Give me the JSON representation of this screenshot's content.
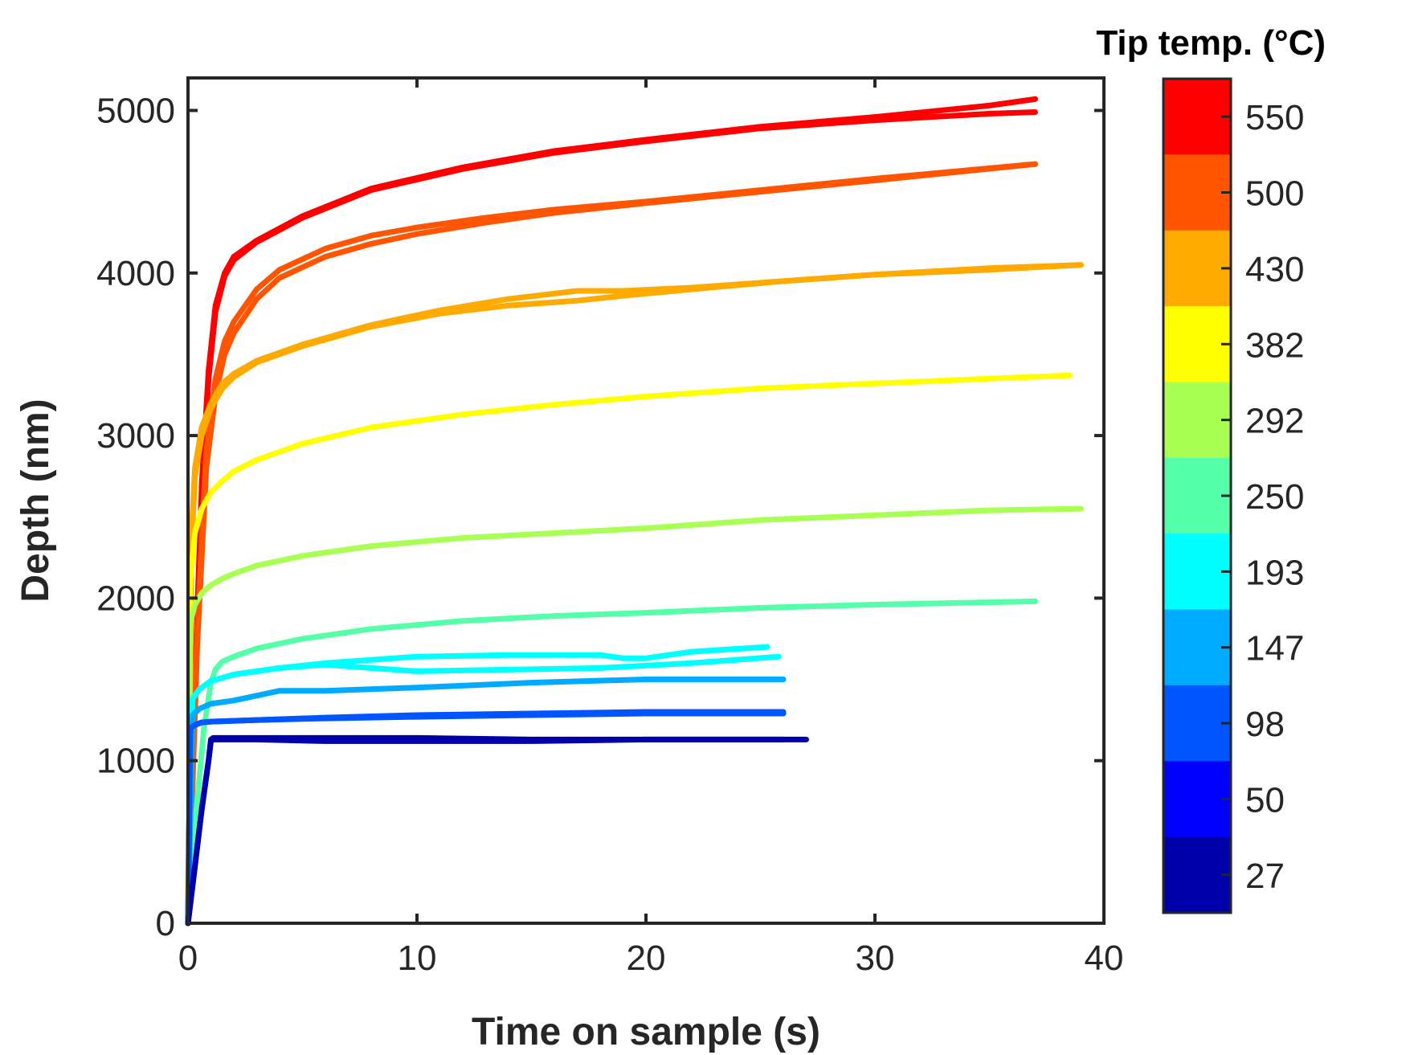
{
  "chart_data": {
    "type": "line",
    "title": "",
    "xlabel": "Time on sample (s)",
    "ylabel": "Depth (nm)",
    "xlim": [
      0,
      40
    ],
    "ylim": [
      0,
      5200
    ],
    "xticks": [
      "0",
      "10",
      "20",
      "30",
      "40"
    ],
    "yticks": [
      "0",
      "1000",
      "2000",
      "3000",
      "4000",
      "5000"
    ],
    "grid": false,
    "colorbar": {
      "title": "Tip temp. (°C)",
      "labels": [
        "550",
        "500",
        "430",
        "382",
        "292",
        "250",
        "193",
        "147",
        "98",
        "50",
        "27"
      ],
      "colors": [
        "#ff0000",
        "#ff5500",
        "#ffaa00",
        "#ffff00",
        "#aaff55",
        "#55ffaa",
        "#00ffff",
        "#00aaff",
        "#0055ff",
        "#0000ff",
        "#0000aa"
      ]
    },
    "series": [
      {
        "temp": "550",
        "color": "#ff0000",
        "x": [
          0,
          0.3,
          0.6,
          0.9,
          1.2,
          1.6,
          2,
          3,
          5,
          8,
          12,
          16,
          20,
          25,
          30,
          35,
          37
        ],
        "y": [
          0,
          1500,
          2700,
          3400,
          3800,
          4000,
          4100,
          4200,
          4350,
          4520,
          4650,
          4750,
          4820,
          4900,
          4960,
          5030,
          5070
        ]
      },
      {
        "temp": "550",
        "color": "#ff0000",
        "x": [
          0,
          0.3,
          0.6,
          0.9,
          1.2,
          1.6,
          2,
          3,
          5,
          8,
          12,
          16,
          20,
          25,
          30,
          35,
          37
        ],
        "y": [
          0,
          1400,
          2600,
          3350,
          3760,
          3980,
          4080,
          4190,
          4340,
          4510,
          4640,
          4740,
          4810,
          4890,
          4940,
          4980,
          4990
        ]
      },
      {
        "temp": "500",
        "color": "#ff5500",
        "x": [
          0,
          0.4,
          0.8,
          1.2,
          1.6,
          2,
          3,
          4,
          6,
          8,
          10,
          13,
          16,
          20,
          25,
          30,
          37
        ],
        "y": [
          0,
          1800,
          2900,
          3350,
          3580,
          3700,
          3900,
          4020,
          4150,
          4230,
          4280,
          4340,
          4390,
          4440,
          4510,
          4580,
          4670
        ]
      },
      {
        "temp": "500",
        "color": "#ff5500",
        "x": [
          0,
          0.4,
          0.8,
          1.2,
          1.6,
          2,
          3,
          4,
          6,
          8,
          10,
          13,
          16,
          20,
          25,
          30,
          37
        ],
        "y": [
          0,
          1700,
          2800,
          3250,
          3500,
          3630,
          3840,
          3970,
          4100,
          4180,
          4240,
          4310,
          4370,
          4430,
          4500,
          4570,
          4670
        ]
      },
      {
        "temp": "430",
        "color": "#ffaa00",
        "x": [
          0,
          0.15,
          0.3,
          0.6,
          1,
          1.5,
          2,
          3,
          5,
          8,
          11,
          14,
          17,
          19,
          22,
          26,
          30,
          35,
          39
        ],
        "y": [
          0,
          2400,
          2800,
          3050,
          3200,
          3320,
          3380,
          3460,
          3560,
          3680,
          3770,
          3840,
          3890,
          3890,
          3910,
          3950,
          3990,
          4020,
          4050
        ]
      },
      {
        "temp": "430",
        "color": "#ffaa00",
        "x": [
          0,
          0.15,
          0.3,
          0.6,
          1,
          1.5,
          2,
          3,
          5,
          8,
          11,
          14,
          17,
          19,
          22,
          26,
          30,
          35,
          39
        ],
        "y": [
          0,
          2300,
          2750,
          3000,
          3170,
          3290,
          3360,
          3450,
          3550,
          3670,
          3750,
          3800,
          3830,
          3860,
          3900,
          3950,
          3990,
          4030,
          4050
        ]
      },
      {
        "temp": "382",
        "color": "#ffff00",
        "x": [
          0,
          0.1,
          0.3,
          0.6,
          1,
          1.5,
          2,
          3,
          5,
          8,
          12,
          16,
          20,
          25,
          30,
          35,
          38.5
        ],
        "y": [
          0,
          2100,
          2400,
          2550,
          2650,
          2720,
          2780,
          2850,
          2950,
          3050,
          3130,
          3190,
          3240,
          3290,
          3320,
          3350,
          3370
        ]
      },
      {
        "temp": "292",
        "color": "#aaff55",
        "x": [
          0,
          0.1,
          0.3,
          0.6,
          1,
          1.5,
          2,
          3,
          5,
          8,
          12,
          16,
          20,
          25,
          30,
          35,
          39
        ],
        "y": [
          0,
          1850,
          1960,
          2030,
          2080,
          2120,
          2150,
          2200,
          2260,
          2320,
          2370,
          2400,
          2430,
          2480,
          2510,
          2540,
          2550
        ]
      },
      {
        "temp": "250",
        "color": "#55ffaa",
        "x": [
          0,
          0.3,
          0.7,
          1,
          1.2,
          1.5,
          2,
          3,
          5,
          8,
          12,
          16,
          20,
          25,
          30,
          37
        ],
        "y": [
          0,
          600,
          1200,
          1480,
          1560,
          1610,
          1640,
          1690,
          1750,
          1810,
          1860,
          1890,
          1910,
          1940,
          1960,
          1980
        ]
      },
      {
        "temp": "193",
        "color": "#00ffff",
        "x": [
          0,
          0.2,
          0.5,
          1,
          2,
          4,
          6,
          8,
          10,
          14,
          18,
          19,
          20,
          22,
          25.3
        ],
        "y": [
          0,
          1380,
          1440,
          1490,
          1530,
          1570,
          1600,
          1620,
          1640,
          1650,
          1650,
          1630,
          1630,
          1670,
          1700
        ]
      },
      {
        "temp": "193",
        "color": "#00ffff",
        "x": [
          0,
          0.2,
          0.5,
          1,
          2,
          4,
          6,
          8,
          10,
          14,
          18,
          22,
          25.8
        ],
        "y": [
          0,
          1380,
          1440,
          1490,
          1530,
          1570,
          1590,
          1570,
          1550,
          1560,
          1570,
          1600,
          1640
        ]
      },
      {
        "temp": "147",
        "color": "#00aaff",
        "x": [
          0,
          0.2,
          0.5,
          1,
          2,
          3,
          4,
          6,
          10,
          15,
          20,
          26
        ],
        "y": [
          0,
          1280,
          1320,
          1350,
          1370,
          1400,
          1430,
          1430,
          1450,
          1480,
          1500,
          1500
        ]
      },
      {
        "temp": "98",
        "color": "#0055ff",
        "x": [
          0,
          0.1,
          0.3,
          0.6,
          1,
          3,
          6,
          10,
          15,
          20,
          26
        ],
        "y": [
          0,
          1200,
          1220,
          1235,
          1240,
          1250,
          1265,
          1280,
          1290,
          1300,
          1300
        ]
      },
      {
        "temp": "98",
        "color": "#0055ff",
        "x": [
          0,
          0.1,
          0.3,
          0.6,
          1,
          3,
          6,
          10,
          15,
          20,
          26
        ],
        "y": [
          0,
          1200,
          1220,
          1235,
          1240,
          1250,
          1260,
          1270,
          1280,
          1290,
          1290
        ]
      },
      {
        "temp": "27",
        "color": "#0000aa",
        "x": [
          0,
          0.3,
          0.6,
          0.9,
          1,
          1.1,
          3,
          6,
          10,
          15,
          20,
          27
        ],
        "y": [
          0,
          350,
          700,
          1000,
          1130,
          1140,
          1140,
          1140,
          1140,
          1130,
          1130,
          1130
        ]
      },
      {
        "temp": "27",
        "color": "#0000aa",
        "x": [
          0,
          0.3,
          0.6,
          0.9,
          1,
          1.1,
          3,
          6,
          10,
          15,
          20,
          26
        ],
        "y": [
          0,
          350,
          700,
          1000,
          1120,
          1130,
          1130,
          1120,
          1120,
          1120,
          1130,
          1130
        ]
      }
    ]
  }
}
